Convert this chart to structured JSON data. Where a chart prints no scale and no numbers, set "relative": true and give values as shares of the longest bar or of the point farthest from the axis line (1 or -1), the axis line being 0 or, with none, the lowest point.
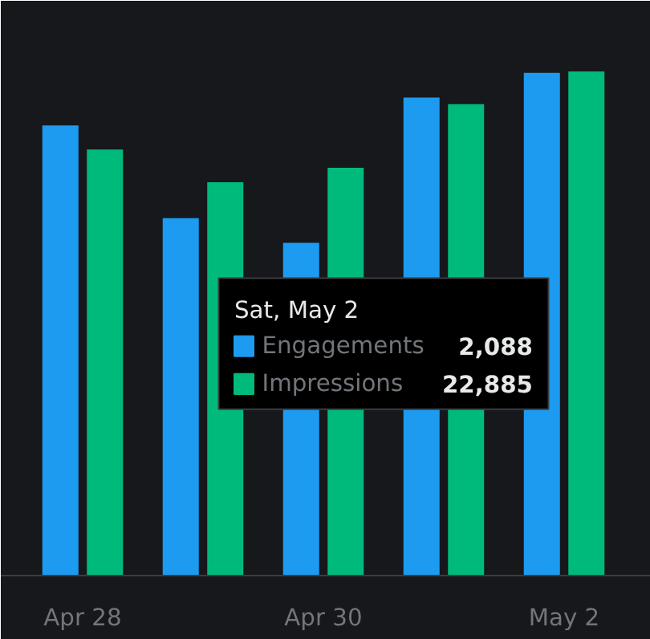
{
  "chart_data": {
    "type": "bar",
    "relative": true,
    "categories": [
      "Apr 28",
      null,
      "Apr 30",
      null,
      "May 2"
    ],
    "series": [
      {
        "name": "Engagements",
        "color": "#1d9bf0",
        "values": [
          0.893,
          0.709,
          0.66,
          0.948,
          0.997
        ]
      },
      {
        "name": "Impressions",
        "color": "#00ba7c",
        "values": [
          0.845,
          0.78,
          0.809,
          0.935,
          1.0
        ]
      }
    ],
    "legend": "center",
    "annotations": [
      "Sat, May 2",
      "2,088",
      "22,885"
    ]
  }
}
